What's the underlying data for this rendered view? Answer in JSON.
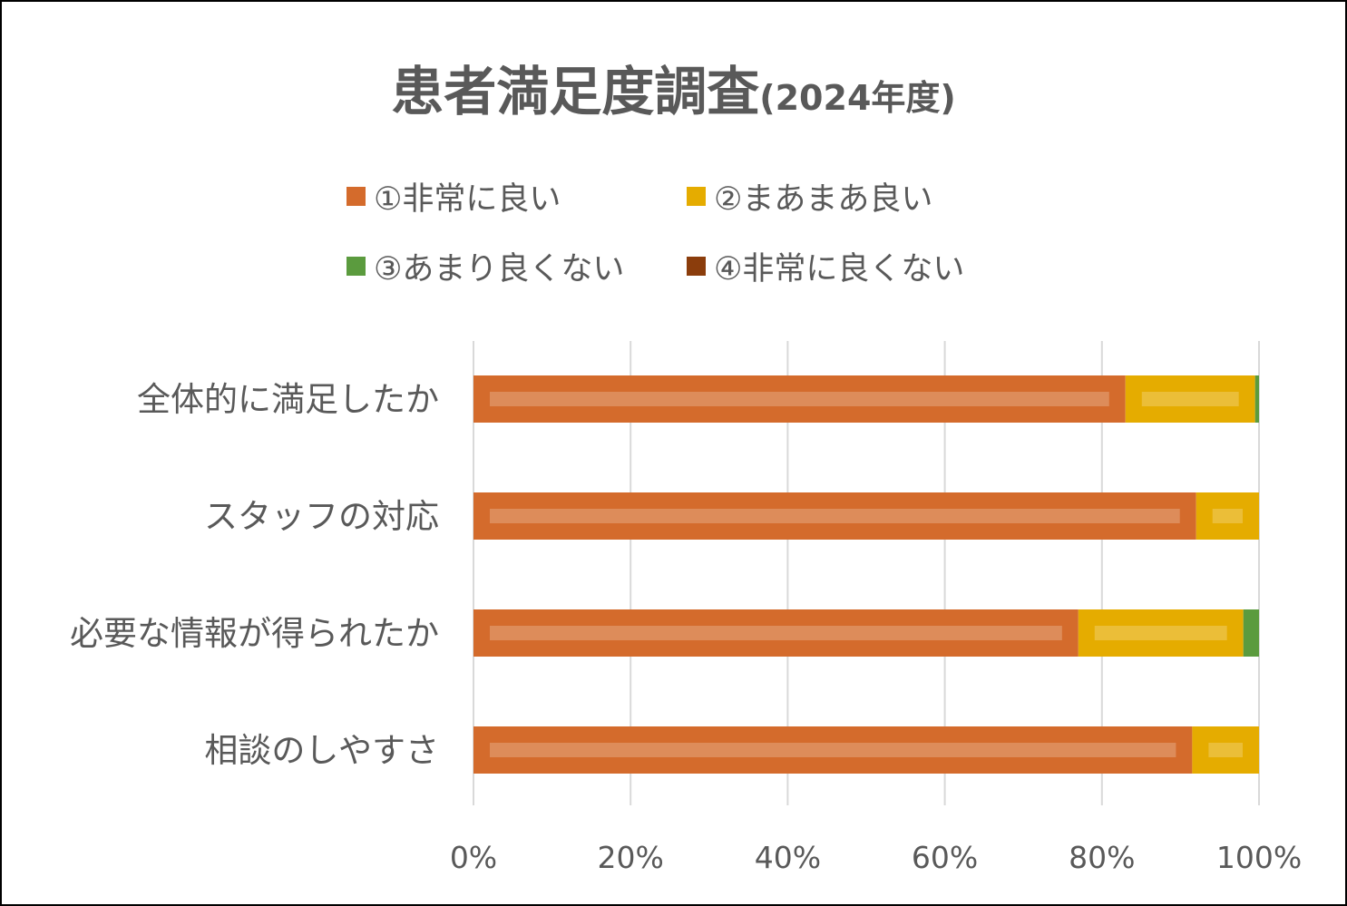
{
  "chart_data": {
    "type": "bar",
    "orientation": "horizontal",
    "stacked": "percent",
    "title": "患者満足度調査",
    "title_suffix": "(2024年度)",
    "categories": [
      "全体的に満足したか",
      "スタッフの対応",
      "必要な情報が得られたか",
      "相談のしやすさ"
    ],
    "series": [
      {
        "name": "①非常に良い",
        "color": "#D46B2C",
        "values": [
          83,
          92,
          77,
          91.5
        ]
      },
      {
        "name": "②まあまあ良い",
        "color": "#E5AC00",
        "values": [
          16.5,
          8,
          21,
          8.5
        ]
      },
      {
        "name": "③あまり良くない",
        "color": "#5B9B3E",
        "values": [
          0.5,
          0,
          2,
          0
        ]
      },
      {
        "name": "④非常に良くない",
        "color": "#8B3D0C",
        "values": [
          0,
          0,
          0,
          0
        ]
      }
    ],
    "xlim": [
      0,
      100
    ],
    "x_ticks": [
      "0%",
      "20%",
      "40%",
      "60%",
      "80%",
      "100%"
    ],
    "grid": true,
    "legend_position": "top"
  }
}
